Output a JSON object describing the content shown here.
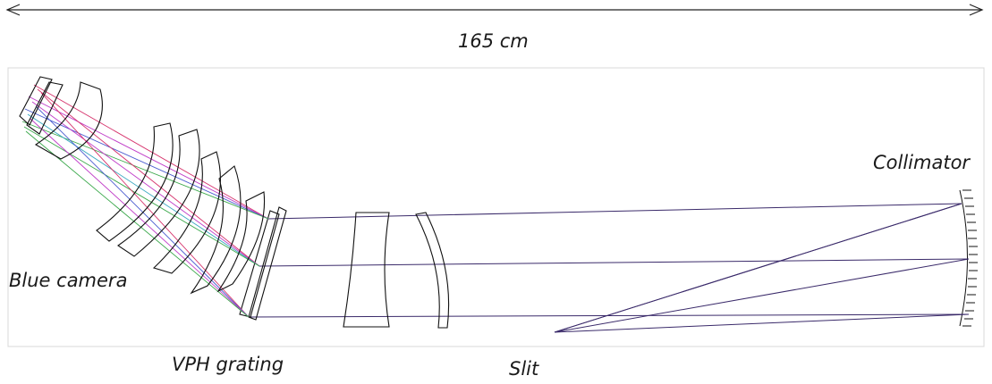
{
  "dimension": {
    "label": "165 cm"
  },
  "labels": {
    "collimator": "Collimator",
    "blue_camera": "Blue camera",
    "vph_grating": "VPH grating",
    "slit": "Slit"
  },
  "colors": {
    "ray_main": "#3a2a6a",
    "ray_red": "#d6336c",
    "ray_magenta": "#c03cc8",
    "ray_blue": "#4a5cd0",
    "ray_green": "#3aa84a",
    "ray_cyan": "#38a8c0",
    "optics_outline": "#111111",
    "frame": "#d8d8d8"
  }
}
